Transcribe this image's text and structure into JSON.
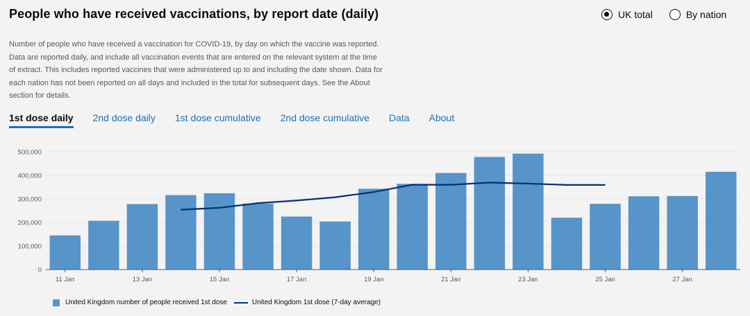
{
  "title": "People who have received vaccinations, by report date (daily)",
  "radios": [
    {
      "label": "UK total",
      "checked": true
    },
    {
      "label": "By nation",
      "checked": false
    }
  ],
  "description": "Number of people who have received a vaccination for COVID-19, by day on which the vaccine was reported. Data are reported daily, and include all vaccination events that are entered on the relevant system at the time of extract. This includes reported vaccines that were administered up to and including the date shown. Data for each nation has not been reported on all days and included in the total for subsequent days. See the About section for details.",
  "tabs": [
    {
      "label": "1st dose daily",
      "active": true
    },
    {
      "label": "2nd dose daily",
      "active": false
    },
    {
      "label": "1st dose cumulative",
      "active": false
    },
    {
      "label": "2nd dose cumulative",
      "active": false
    },
    {
      "label": "Data",
      "active": false
    },
    {
      "label": "About",
      "active": false
    }
  ],
  "colors": {
    "bar": "#5694ca",
    "line": "#003078"
  },
  "chart_data": {
    "type": "bar",
    "title": "People who have received vaccinations, by report date (daily)",
    "categories": [
      "11 Jan",
      "12 Jan",
      "13 Jan",
      "14 Jan",
      "15 Jan",
      "16 Jan",
      "17 Jan",
      "18 Jan",
      "19 Jan",
      "20 Jan",
      "21 Jan",
      "22 Jan",
      "23 Jan",
      "24 Jan",
      "25 Jan",
      "26 Jan",
      "27 Jan",
      "28 Jan"
    ],
    "tick_labels": [
      "11 Jan",
      "13 Jan",
      "15 Jan",
      "17 Jan",
      "19 Jan",
      "21 Jan",
      "23 Jan",
      "25 Jan",
      "27 Jan"
    ],
    "y_tick_labels": [
      "0",
      "100,000",
      "200,000",
      "300,000",
      "400,000",
      "500,000"
    ],
    "ylim": [
      0,
      500000
    ],
    "series": [
      {
        "name": "United Kingdom number of people received 1st dose",
        "type": "bar",
        "values": [
          145000,
          207000,
          278000,
          316000,
          324000,
          280000,
          225000,
          204000,
          343000,
          364000,
          410000,
          478000,
          492000,
          220000,
          279000,
          311000,
          312000,
          415000
        ]
      },
      {
        "name": "United Kingdom 1st dose (7-day average)",
        "type": "line",
        "values": [
          null,
          null,
          null,
          254000,
          262000,
          282000,
          293000,
          307000,
          329000,
          360000,
          360000,
          369000,
          365000,
          359000,
          359000,
          null,
          null,
          null
        ]
      }
    ]
  }
}
